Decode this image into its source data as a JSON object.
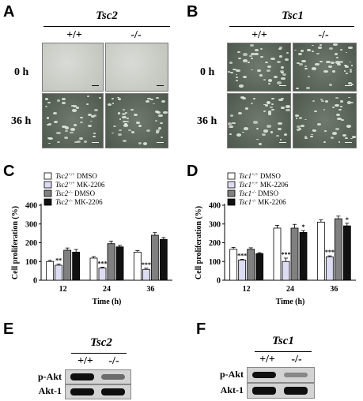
{
  "panels": {
    "A": {
      "letter": "A",
      "gene": "Tsc2",
      "genotypes": [
        "+/+",
        "-/-"
      ],
      "rows": [
        "0 h",
        "36 h"
      ]
    },
    "B": {
      "letter": "B",
      "gene": "Tsc1",
      "genotypes": [
        "+/+",
        "-/-"
      ],
      "rows": [
        "0 h",
        "36 h"
      ]
    },
    "E": {
      "letter": "E",
      "gene": "Tsc2",
      "genotypes": [
        "+/+",
        "-/-"
      ],
      "blots": [
        "p-Akt",
        "Akt-1"
      ],
      "band_intensity": {
        "p-Akt": [
          1.0,
          0.5
        ],
        "Akt-1": [
          1.0,
          1.0
        ]
      }
    },
    "F": {
      "letter": "F",
      "gene": "Tsc1",
      "genotypes": [
        "+/+",
        "-/-"
      ],
      "blots": [
        "p-Akt",
        "Akt-1"
      ],
      "band_intensity": {
        "p-Akt": [
          1.0,
          0.35
        ],
        "Akt-1": [
          1.0,
          1.0
        ]
      }
    }
  },
  "colors": {
    "white_bar": "#ffffff",
    "light_bar": "#dcdcf2",
    "gray_bar": "#808080",
    "black_bar": "#111111"
  },
  "chart_data": [
    {
      "type": "bar",
      "letter": "C",
      "categories": [
        "12",
        "24",
        "36"
      ],
      "xlabel": "Time (h)",
      "ylabel": "Cell proliferation (%)",
      "ylim": [
        0,
        400
      ],
      "yticks": [
        "0",
        "100",
        "200",
        "300",
        "400"
      ],
      "legend_position": "top-left",
      "series": [
        {
          "name": "Tsc2",
          "sup": "+/+",
          "suffix": "DMSO",
          "color": "#ffffff",
          "values": [
            100,
            118,
            150
          ],
          "err": [
            6,
            8,
            8
          ],
          "sig": [
            "",
            "",
            ""
          ]
        },
        {
          "name": "Tsc2",
          "sup": "+/+",
          "suffix": "MK-2206",
          "color": "#dcdcf2",
          "values": [
            80,
            65,
            58
          ],
          "err": [
            6,
            5,
            6
          ],
          "sig": [
            "**",
            "***",
            "***"
          ]
        },
        {
          "name": "Tsc2",
          "sup": "-/-",
          "suffix": "DMSO",
          "color": "#808080",
          "values": [
            160,
            195,
            240
          ],
          "err": [
            12,
            14,
            14
          ],
          "sig": [
            "",
            "",
            ""
          ]
        },
        {
          "name": "Tsc2",
          "sup": "-/-",
          "suffix": "MK-2206",
          "color": "#111111",
          "values": [
            150,
            178,
            218
          ],
          "err": [
            14,
            8,
            10
          ],
          "sig": [
            "",
            "",
            ""
          ]
        }
      ]
    },
    {
      "type": "bar",
      "letter": "D",
      "categories": [
        "12",
        "24",
        "36"
      ],
      "xlabel": "Time (h)",
      "ylabel": "Cell proliferation (%)",
      "ylim": [
        0,
        400
      ],
      "yticks": [
        "0",
        "100",
        "200",
        "300",
        "400"
      ],
      "legend_position": "top-left",
      "series": [
        {
          "name": "Tsc1",
          "sup": "+/+",
          "suffix": "DMSO",
          "color": "#ffffff",
          "values": [
            165,
            278,
            310
          ],
          "err": [
            10,
            15,
            12
          ],
          "sig": [
            "",
            "",
            ""
          ]
        },
        {
          "name": "Tsc1",
          "sup": "+/+",
          "suffix": "MK-2206",
          "color": "#dcdcf2",
          "values": [
            108,
            100,
            125
          ],
          "err": [
            4,
            18,
            5
          ],
          "sig": [
            "***",
            "***",
            "***"
          ]
        },
        {
          "name": "Tsc1",
          "sup": "-/-",
          "suffix": "DMSO",
          "color": "#808080",
          "values": [
            165,
            278,
            328
          ],
          "err": [
            8,
            20,
            14
          ],
          "sig": [
            "",
            "",
            ""
          ]
        },
        {
          "name": "Tsc1",
          "sup": "-/-",
          "suffix": "MK-2206",
          "color": "#111111",
          "values": [
            142,
            255,
            290
          ],
          "err": [
            5,
            10,
            14
          ],
          "sig": [
            "",
            "*",
            "*"
          ]
        }
      ]
    }
  ]
}
